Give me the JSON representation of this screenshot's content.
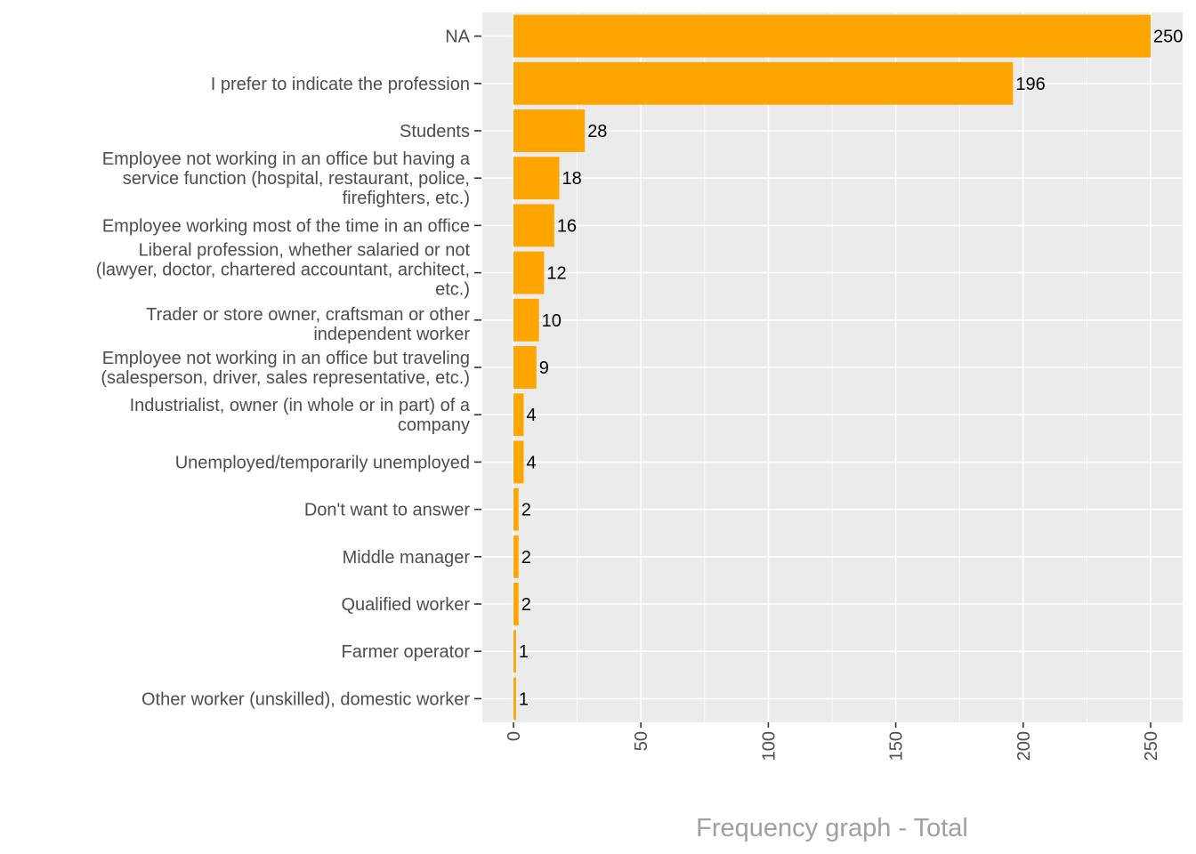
{
  "chart_data": {
    "type": "bar",
    "orientation": "horizontal",
    "title": "",
    "xlabel": "Frequency graph - Total",
    "ylabel": "",
    "xlim": [
      -12,
      262
    ],
    "xticks": [
      0,
      50,
      100,
      150,
      200,
      250
    ],
    "xtick_labels": [
      "0",
      "50",
      "100",
      "150",
      "200",
      "250"
    ],
    "grid": true,
    "bar_color": "#FFA500",
    "panel_color": "#EBEBEB",
    "categories": [
      {
        "lines": [
          "NA"
        ],
        "value": 250
      },
      {
        "lines": [
          "I prefer to indicate the profession"
        ],
        "value": 196
      },
      {
        "lines": [
          "Students"
        ],
        "value": 28
      },
      {
        "lines": [
          "Employee not working in an office but having a",
          "service function (hospital, restaurant, police,",
          "firefighters, etc.)"
        ],
        "value": 18
      },
      {
        "lines": [
          "Employee working most of the time in an office"
        ],
        "value": 16
      },
      {
        "lines": [
          "Liberal profession, whether salaried or not",
          "(lawyer, doctor, chartered accountant, architect,",
          "etc.)"
        ],
        "value": 12
      },
      {
        "lines": [
          "Trader or store owner, craftsman or other",
          "independent worker"
        ],
        "value": 10
      },
      {
        "lines": [
          "Employee not working in an office but traveling",
          "(salesperson, driver, sales representative, etc.)"
        ],
        "value": 9
      },
      {
        "lines": [
          "Industrialist, owner (in whole or in part) of a",
          "company"
        ],
        "value": 4
      },
      {
        "lines": [
          "Unemployed/temporarily unemployed"
        ],
        "value": 4
      },
      {
        "lines": [
          "Don't want to answer"
        ],
        "value": 2
      },
      {
        "lines": [
          "Middle manager"
        ],
        "value": 2
      },
      {
        "lines": [
          "Qualified worker"
        ],
        "value": 2
      },
      {
        "lines": [
          "Farmer operator"
        ],
        "value": 1
      },
      {
        "lines": [
          "Other worker (unskilled), domestic worker"
        ],
        "value": 1
      }
    ]
  }
}
